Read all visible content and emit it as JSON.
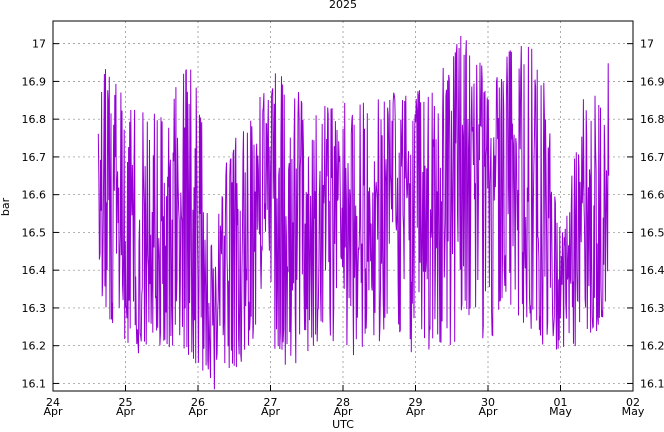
{
  "chart_data": {
    "type": "line",
    "title": "2025",
    "xlabel": "UTC",
    "ylabel": "bar",
    "xlim": [
      "2025-04-24T00:00",
      "2025-05-02T00:00"
    ],
    "ylim": [
      16.08,
      17.06
    ],
    "grid": true,
    "y_ticks": [
      16.1,
      16.2,
      16.3,
      16.4,
      16.5,
      16.6,
      16.7,
      16.8,
      16.9,
      17
    ],
    "y_tick_labels": [
      "16.1",
      "16.2",
      "16.3",
      "16.4",
      "16.5",
      "16.6",
      "16.7",
      "16.8",
      "16.9",
      "17"
    ],
    "x_ticks": [
      {
        "date": "2025-04-24",
        "day": "24",
        "month": "Apr"
      },
      {
        "date": "2025-04-25",
        "day": "25",
        "month": "Apr"
      },
      {
        "date": "2025-04-26",
        "day": "26",
        "month": "Apr"
      },
      {
        "date": "2025-04-27",
        "day": "27",
        "month": "Apr"
      },
      {
        "date": "2025-04-28",
        "day": "28",
        "month": "Apr"
      },
      {
        "date": "2025-04-29",
        "day": "29",
        "month": "Apr"
      },
      {
        "date": "2025-04-30",
        "day": "30",
        "month": "Apr"
      },
      {
        "date": "2025-05-01",
        "day": "01",
        "month": "May"
      },
      {
        "date": "2025-05-02",
        "day": "02",
        "month": "May"
      }
    ],
    "series_color": "#9400d3",
    "series": [
      {
        "x": [
          "2025-04-24T15:00",
          "2025-04-25T12:00",
          "2025-05-01T16:00"
        ],
        "y": [
          16.6,
          16.5,
          16.6
        ],
        "envelope": [
          {
            "x": "2025-04-24T16:00",
            "min": 16.3,
            "max": 16.95
          },
          {
            "x": "2025-04-25T00:00",
            "min": 16.2,
            "max": 16.87
          },
          {
            "x": "2025-04-25T08:00",
            "min": 16.15,
            "max": 16.85
          },
          {
            "x": "2025-04-25T16:00",
            "min": 16.2,
            "max": 16.9
          },
          {
            "x": "2025-04-25T22:00",
            "min": 16.15,
            "max": 16.98
          },
          {
            "x": "2025-04-26T02:00",
            "min": 16.09,
            "max": 16.75
          },
          {
            "x": "2025-04-26T08:00",
            "min": 16.08,
            "max": 16.65
          },
          {
            "x": "2025-04-26T14:00",
            "min": 16.15,
            "max": 16.8
          },
          {
            "x": "2025-04-26T22:00",
            "min": 16.2,
            "max": 16.9
          },
          {
            "x": "2025-04-27T06:00",
            "min": 16.13,
            "max": 16.95
          },
          {
            "x": "2025-04-27T14:00",
            "min": 16.2,
            "max": 16.87
          },
          {
            "x": "2025-04-27T22:00",
            "min": 16.18,
            "max": 16.85
          },
          {
            "x": "2025-04-28T06:00",
            "min": 16.17,
            "max": 16.85
          },
          {
            "x": "2025-04-28T14:00",
            "min": 16.2,
            "max": 16.88
          },
          {
            "x": "2025-04-28T22:00",
            "min": 16.18,
            "max": 16.86
          },
          {
            "x": "2025-04-29T06:00",
            "min": 16.18,
            "max": 16.92
          },
          {
            "x": "2025-04-29T12:00",
            "min": 16.2,
            "max": 17.0
          },
          {
            "x": "2025-04-29T18:00",
            "min": 16.25,
            "max": 17.06
          },
          {
            "x": "2025-04-30T00:00",
            "min": 16.2,
            "max": 16.9
          },
          {
            "x": "2025-04-30T06:00",
            "min": 16.3,
            "max": 16.97
          },
          {
            "x": "2025-04-30T12:00",
            "min": 16.25,
            "max": 17.03
          },
          {
            "x": "2025-04-30T18:00",
            "min": 16.2,
            "max": 16.95
          },
          {
            "x": "2025-05-01T00:00",
            "min": 16.18,
            "max": 16.5
          },
          {
            "x": "2025-05-01T08:00",
            "min": 16.2,
            "max": 16.88
          },
          {
            "x": "2025-05-01T14:00",
            "min": 16.25,
            "max": 16.85
          },
          {
            "x": "2025-05-01T17:00",
            "min": 16.4,
            "max": 17.06
          }
        ]
      }
    ]
  }
}
